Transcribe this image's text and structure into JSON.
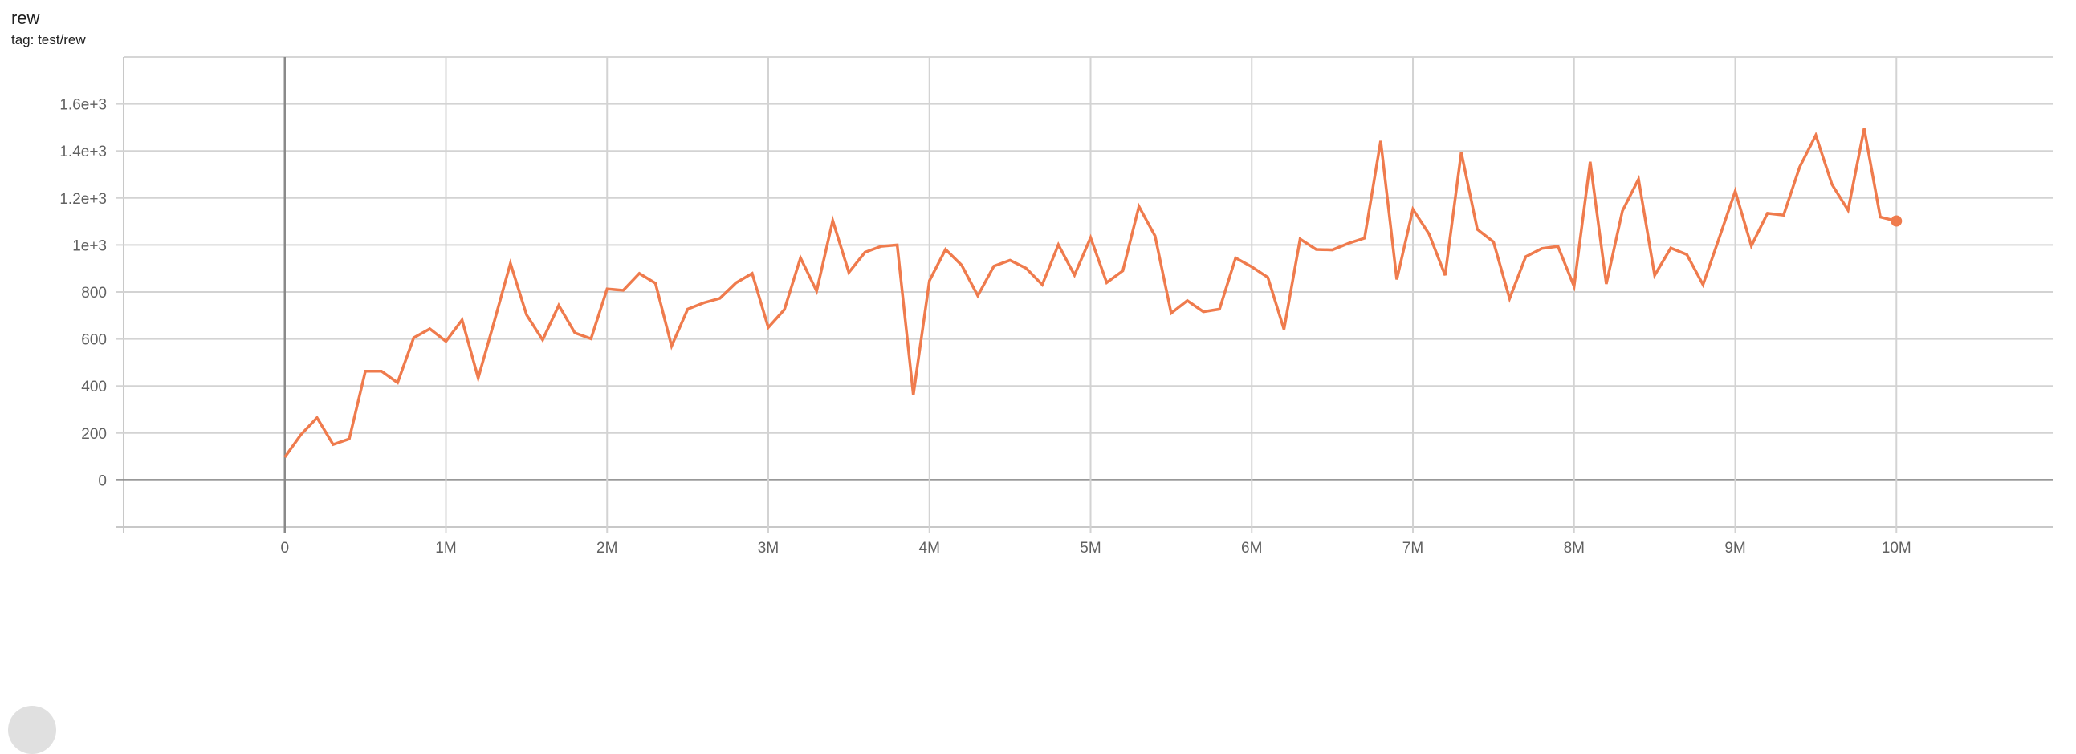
{
  "card": {
    "title": "rew",
    "tag": "tag: test/rew"
  },
  "chart_data": {
    "type": "line",
    "title": "rew",
    "xlabel": "",
    "ylabel": "",
    "xlim": [
      -1000000,
      10970000
    ],
    "ylim": [
      -200,
      1800
    ],
    "grid": true,
    "legend": "none",
    "color": "#ef7b4d",
    "x_ticks": [
      {
        "value": 0,
        "label": "0"
      },
      {
        "value": 1000000,
        "label": "1M"
      },
      {
        "value": 2000000,
        "label": "2M"
      },
      {
        "value": 3000000,
        "label": "3M"
      },
      {
        "value": 4000000,
        "label": "4M"
      },
      {
        "value": 5000000,
        "label": "5M"
      },
      {
        "value": 6000000,
        "label": "6M"
      },
      {
        "value": 7000000,
        "label": "7M"
      },
      {
        "value": 8000000,
        "label": "8M"
      },
      {
        "value": 9000000,
        "label": "9M"
      },
      {
        "value": 10000000,
        "label": "10M"
      }
    ],
    "y_ticks": [
      {
        "value": 0,
        "label": "0"
      },
      {
        "value": 200,
        "label": "200"
      },
      {
        "value": 400,
        "label": "400"
      },
      {
        "value": 600,
        "label": "600"
      },
      {
        "value": 800,
        "label": "800"
      },
      {
        "value": 1000,
        "label": "1e+3"
      },
      {
        "value": 1200,
        "label": "1.2e+3"
      },
      {
        "value": 1400,
        "label": "1.4e+3"
      },
      {
        "value": 1600,
        "label": "1.6e+3"
      }
    ],
    "series": [
      {
        "x_step": 100000,
        "x_start": 0,
        "values": [
          97,
          193,
          265,
          151,
          175,
          463,
          463,
          414,
          605,
          643,
          590,
          681,
          434,
          675,
          922,
          703,
          596,
          743,
          626,
          601,
          813,
          807,
          879,
          837,
          570,
          727,
          754,
          773,
          839,
          879,
          649,
          725,
          945,
          804,
          1104,
          883,
          969,
          994,
          1000,
          362,
          848,
          981,
          914,
          784,
          910,
          935,
          901,
          831,
          1001,
          872,
          1031,
          840,
          890,
          1164,
          1038,
          710,
          763,
          716,
          727,
          945,
          907,
          862,
          641,
          1025,
          981,
          979,
          1007,
          1029,
          1443,
          853,
          1152,
          1047,
          871,
          1394,
          1066,
          1013,
          772,
          950,
          985,
          994,
          824,
          1354,
          834,
          1145,
          1280,
          871,
          987,
          959,
          831,
          1029,
          1229,
          996,
          1135,
          1127,
          1332,
          1467,
          1258,
          1148,
          1495,
          1119,
          1102
        ]
      }
    ]
  }
}
